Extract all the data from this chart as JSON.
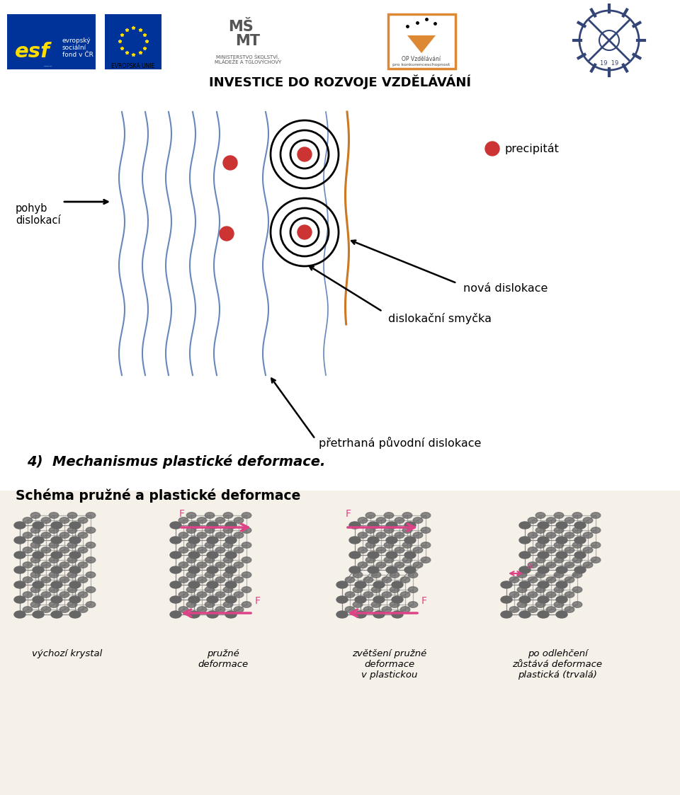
{
  "bg_color": "#ffffff",
  "cream_bg": "#f5f0e8",
  "blue_line_color": "#6688bb",
  "orange_line_color": "#cc7722",
  "red_dot_color": "#cc3333",
  "label_pohyb": "pohyb\ndislokací",
  "label_precipitat": "precipitát",
  "label_nova_dislokace": "nová dislokace",
  "label_dislokacni_smycka": "dislokační smyčka",
  "label_pretrhana": "přetrhaná původní dislokace",
  "label_section": "4)  Mechanismus plastické deformace.",
  "label_schema": "Schéma pružné a plastické deformace",
  "label_vychozi": "výchozí krystal",
  "label_pruzne": "pružné\ndeformace",
  "label_zvetšeni": "zvětšení pružné\ndeformace\nv plastickou",
  "label_odlehceni": "po odlehčení\nzůstává deformace\nplastická (trvalá)",
  "investice": "INVESTICE DO ROZVOJE VZDĚLÁVÁNÍ",
  "force_arrow_color": "#dd4488",
  "node_color": "#666666",
  "crystal_line_color": "#888888",
  "black": "#000000"
}
